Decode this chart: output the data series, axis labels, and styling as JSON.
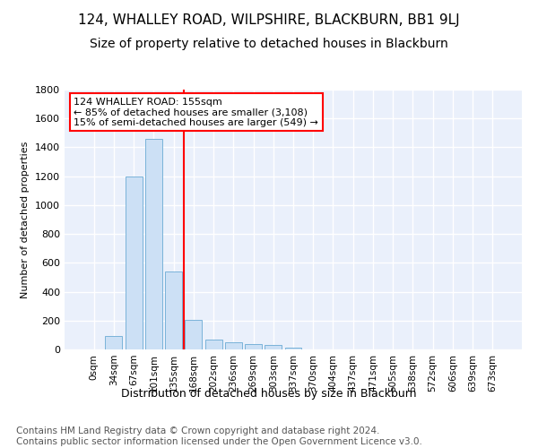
{
  "title1": "124, WHALLEY ROAD, WILPSHIRE, BLACKBURN, BB1 9LJ",
  "title2": "Size of property relative to detached houses in Blackburn",
  "xlabel": "Distribution of detached houses by size in Blackburn",
  "ylabel": "Number of detached properties",
  "footnote": "Contains HM Land Registry data © Crown copyright and database right 2024.\nContains public sector information licensed under the Open Government Licence v3.0.",
  "bar_labels": [
    "0sqm",
    "34sqm",
    "67sqm",
    "101sqm",
    "135sqm",
    "168sqm",
    "202sqm",
    "236sqm",
    "269sqm",
    "303sqm",
    "337sqm",
    "370sqm",
    "404sqm",
    "437sqm",
    "471sqm",
    "505sqm",
    "538sqm",
    "572sqm",
    "606sqm",
    "639sqm",
    "673sqm"
  ],
  "bar_values": [
    0,
    95,
    1200,
    1460,
    540,
    205,
    70,
    50,
    40,
    28,
    12,
    0,
    0,
    0,
    0,
    0,
    0,
    0,
    0,
    0,
    0
  ],
  "bar_color": "#cce0f5",
  "bar_edgecolor": "#7ab3d9",
  "vline_x": 4.5,
  "vline_color": "red",
  "annotation_text": "124 WHALLEY ROAD: 155sqm\n← 85% of detached houses are smaller (3,108)\n15% of semi-detached houses are larger (549) →",
  "annotation_box_color": "white",
  "annotation_box_edgecolor": "red",
  "ylim": [
    0,
    1800
  ],
  "yticks": [
    0,
    200,
    400,
    600,
    800,
    1000,
    1200,
    1400,
    1600,
    1800
  ],
  "bg_color": "#eaf0fb",
  "grid_color": "white",
  "title1_fontsize": 11,
  "title2_fontsize": 10,
  "footnote_fontsize": 7.5
}
